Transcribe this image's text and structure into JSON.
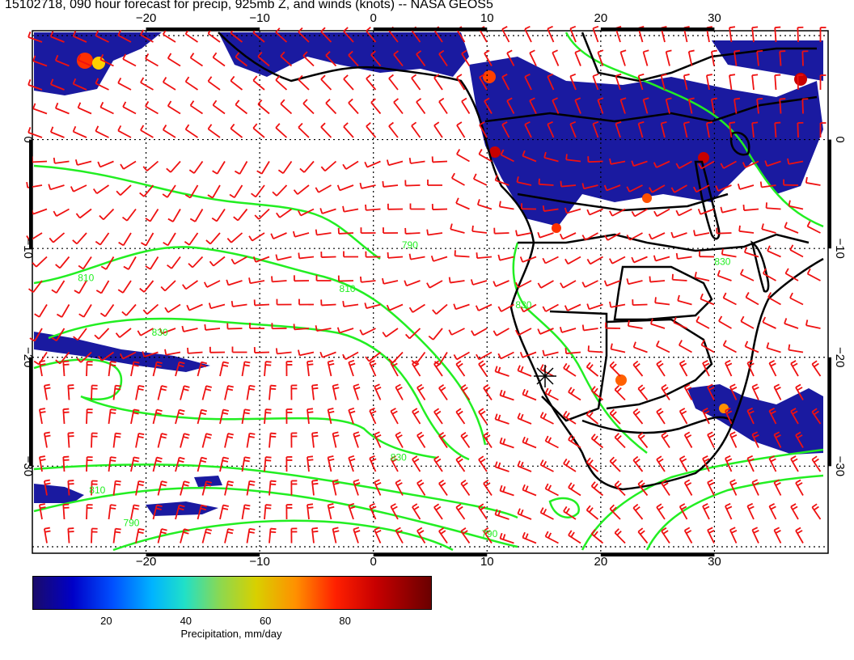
{
  "title": "15102718, 090 hour forecast for precip, 925mb Z, and winds (knots) -- NASA GEOS5",
  "map": {
    "lon_range": [
      -30,
      40
    ],
    "lat_range": [
      -38,
      10
    ],
    "lon_ticks": [
      "−20",
      "−10",
      "0",
      "10",
      "20",
      "30"
    ],
    "lon_tick_values": [
      -20,
      -10,
      0,
      10,
      20,
      30
    ],
    "lat_ticks": [
      "0",
      "−10",
      "−20",
      "−30"
    ],
    "lat_tick_values": [
      0,
      -10,
      -20,
      -30
    ],
    "colors": {
      "coastline": "#000000",
      "contour": "#22ee22",
      "wind_barb": "#ee1111",
      "grid": "#000000"
    },
    "contour_labels": [
      {
        "text": "810",
        "lon": -26,
        "lat": -13
      },
      {
        "text": "810",
        "lon": -3,
        "lat": -14
      },
      {
        "text": "830",
        "lon": -19.5,
        "lat": -18
      },
      {
        "text": "790",
        "lon": 2.5,
        "lat": -10
      },
      {
        "text": "830",
        "lon": 12.5,
        "lat": -15.5
      },
      {
        "text": "830",
        "lon": 1.5,
        "lat": -29.5
      },
      {
        "text": "810",
        "lon": -25,
        "lat": -32.5
      },
      {
        "text": "790",
        "lon": -22,
        "lat": -35.5
      },
      {
        "text": "790",
        "lon": 9.5,
        "lat": -36.5
      },
      {
        "text": "830",
        "lon": 30,
        "lat": -11.5
      }
    ]
  },
  "colorbar": {
    "ticks": [
      "20",
      "40",
      "60",
      "80"
    ],
    "tick_values": [
      20,
      40,
      60,
      80
    ],
    "range": [
      0,
      100
    ],
    "label": "Precipitation, mm/day"
  }
}
